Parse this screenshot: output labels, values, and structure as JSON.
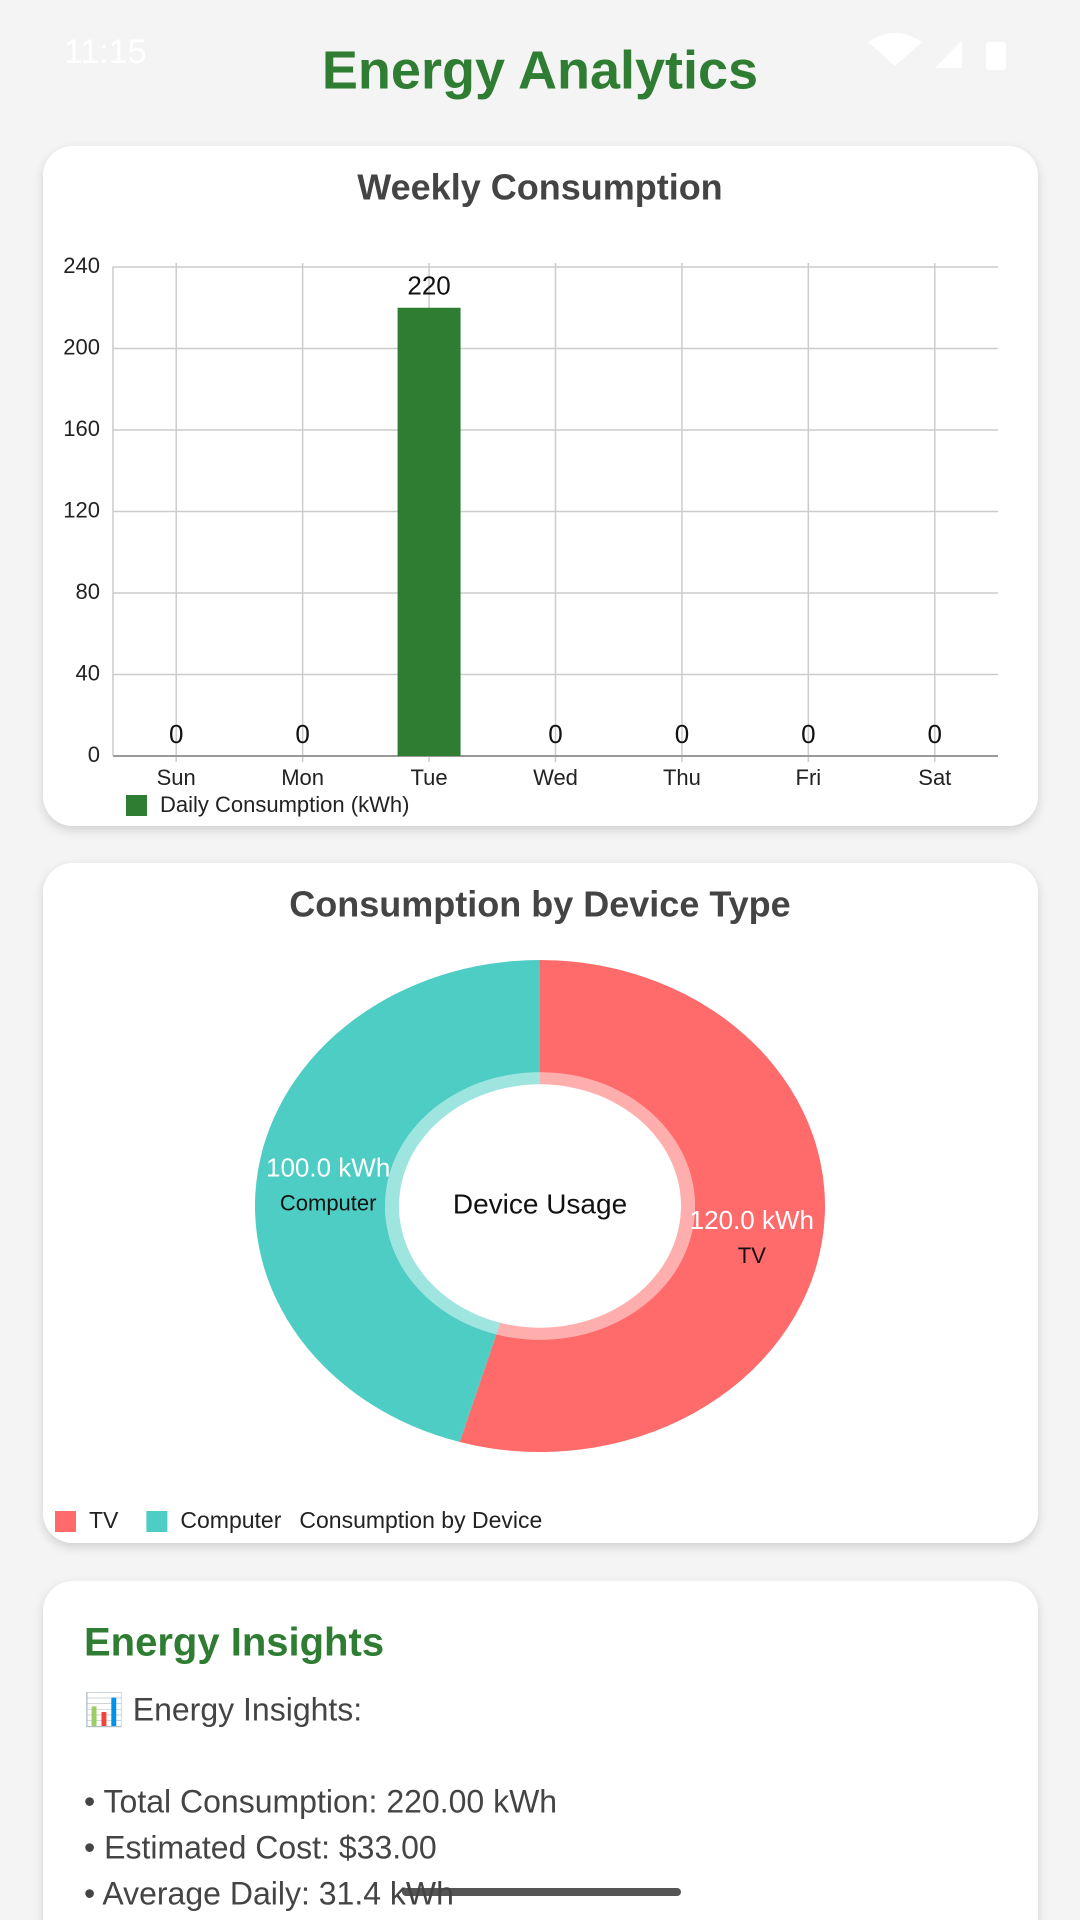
{
  "status_bar": {
    "time": "11:15"
  },
  "header": {
    "title": "Energy Analytics"
  },
  "chart_data": [
    {
      "type": "bar",
      "title": "Weekly Consumption",
      "categories": [
        "Sun",
        "Mon",
        "Tue",
        "Wed",
        "Thu",
        "Fri",
        "Sat"
      ],
      "series": [
        {
          "name": "Daily Consumption (kWh)",
          "color": "#2e7d32",
          "values": [
            0,
            0,
            220,
            0,
            0,
            0,
            0
          ]
        }
      ],
      "ylim": [
        0,
        240
      ],
      "yticks": [
        0,
        40,
        80,
        120,
        160,
        200,
        240
      ],
      "grid": true
    },
    {
      "type": "pie",
      "title": "Consumption by Device Type",
      "center_text": "Device Usage",
      "categories": [
        "TV",
        "Computer"
      ],
      "values": [
        120,
        100
      ],
      "value_labels": [
        "120.0 kWh",
        "100.0 kWh"
      ],
      "colors": [
        "#ff6b6b",
        "#4ecdc4"
      ],
      "label": "Consumption by Device"
    }
  ],
  "insights": {
    "title": "Energy Insights",
    "heading": "📊 Energy Insights:",
    "items": [
      "• Total Consumption: 220.00 kWh",
      "• Estimated Cost: $33.00",
      "• Average Daily: 31.4 kWh"
    ]
  }
}
